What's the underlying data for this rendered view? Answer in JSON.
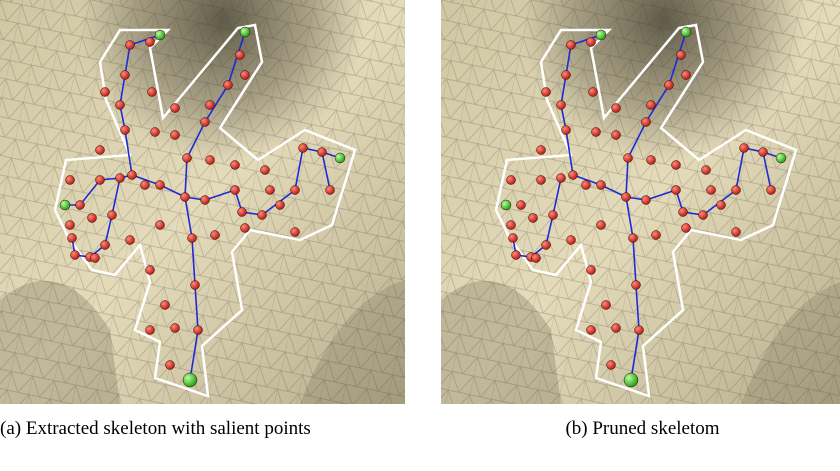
{
  "figure": {
    "panels": [
      {
        "label": "(a)",
        "caption": "Extracted skeleton with salient points"
      },
      {
        "label": "(b)",
        "caption": "Pruned skeletom"
      }
    ]
  }
}
